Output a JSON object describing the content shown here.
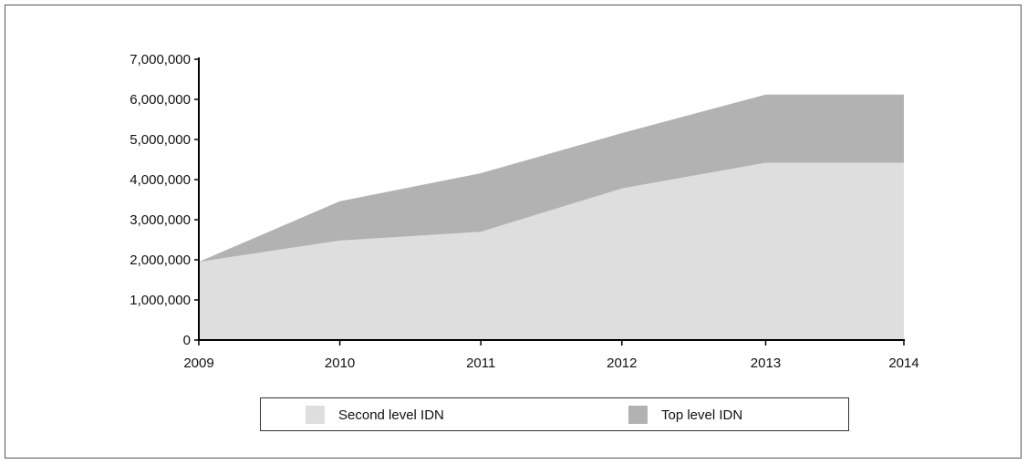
{
  "chart_data": {
    "type": "area",
    "stacked": true,
    "x": [
      "2009",
      "2010",
      "2011",
      "2012",
      "2013",
      "2014"
    ],
    "x_values": [
      2009,
      2010,
      2011,
      2012,
      2013.02,
      2014
    ],
    "series": [
      {
        "name": "Second level IDN",
        "values": [
          1950000,
          2480000,
          2700000,
          3780000,
          4420000,
          4420000
        ],
        "color": "#dedede"
      },
      {
        "name": "Top level IDN",
        "values": [
          0,
          980000,
          1460000,
          1380000,
          1700000,
          1700000
        ],
        "color": "#b2b2b2"
      }
    ],
    "ylim": [
      0,
      7000000
    ],
    "yticks": [
      "0",
      "1,000,000",
      "2,000,000",
      "3,000,000",
      "4,000,000",
      "5,000,000",
      "6,000,000",
      "7,000,000"
    ],
    "ytick_values": [
      0,
      1000000,
      2000000,
      3000000,
      4000000,
      5000000,
      6000000,
      7000000
    ],
    "xlim": [
      2009,
      2014
    ],
    "grid": false,
    "legend_position": "bottom"
  }
}
